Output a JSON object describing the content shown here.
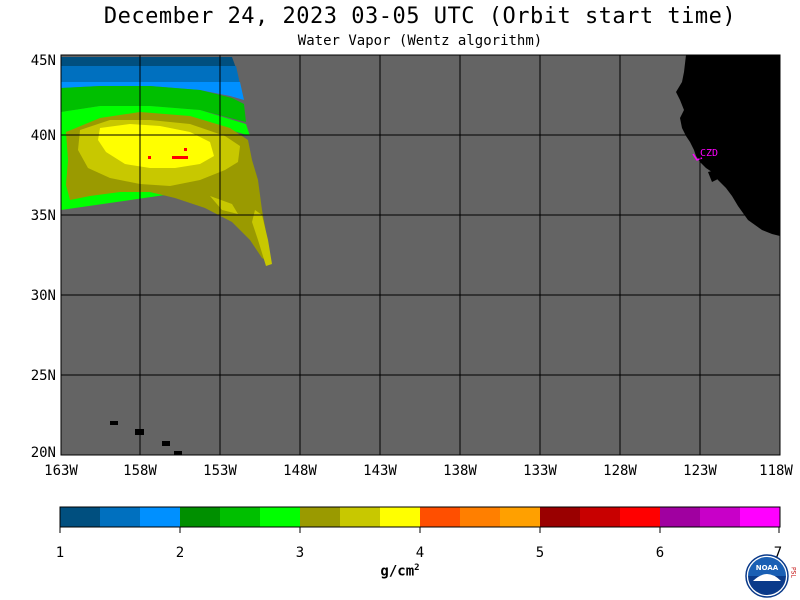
{
  "header": {
    "title": "December 24, 2023  03-05 UTC  (Orbit start time)",
    "subtitle": "Water Vapor (Wentz algorithm)"
  },
  "map": {
    "lat_labels": [
      "45N",
      "40N",
      "35N",
      "30N",
      "25N",
      "20N"
    ],
    "lon_labels": [
      "163W",
      "158W",
      "153W",
      "148W",
      "143W",
      "138W",
      "133W",
      "128W",
      "123W",
      "118W"
    ],
    "station_label": "CZD",
    "colors": {
      "background_gray": "#646464",
      "land": "#000000",
      "grid": "#000000",
      "station": "#ff00ff"
    }
  },
  "colorbar": {
    "tick_labels": [
      "1",
      "2",
      "3",
      "4",
      "5",
      "6",
      "7"
    ],
    "unit_label": "g/cm",
    "unit_superscript": "2",
    "colors": [
      "#004f7f",
      "#0070bf",
      "#0090ff",
      "#008f00",
      "#00bf00",
      "#00ff00",
      "#9a9a00",
      "#c8c800",
      "#ffff00",
      "#ff4f00",
      "#ff7f00",
      "#ffa000",
      "#9a0000",
      "#c80000",
      "#ff0000",
      "#a000a0",
      "#c800c8",
      "#ff00ff"
    ]
  },
  "logo": {
    "text": "NOAA",
    "side_text": "PSL"
  }
}
